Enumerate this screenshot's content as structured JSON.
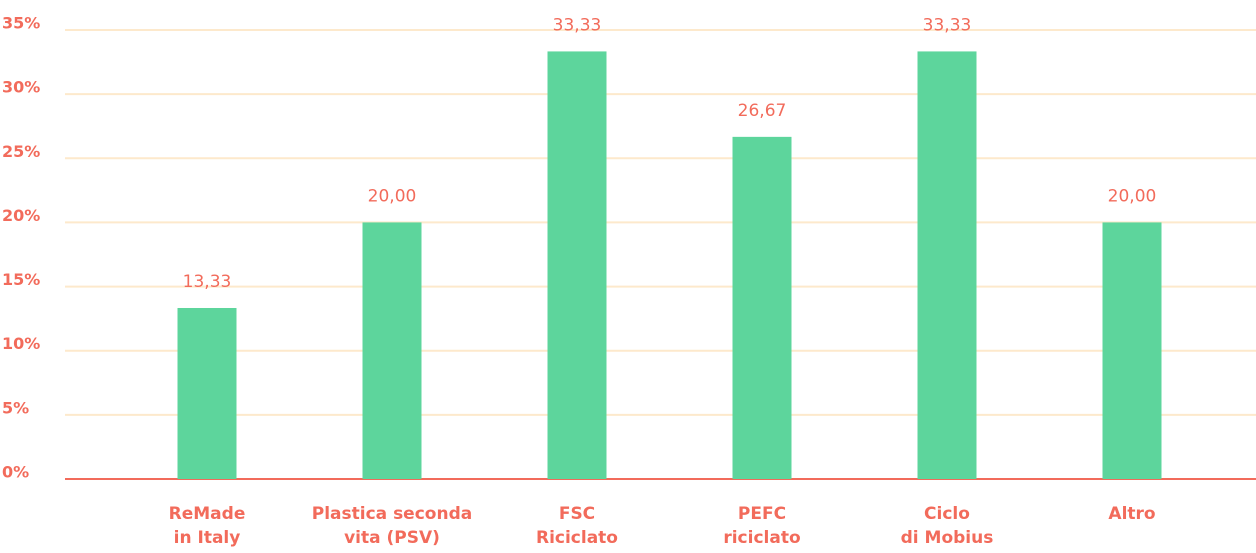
{
  "chart_data": {
    "type": "bar",
    "categories": [
      "ReMade\nin Italy",
      "Plastica seconda\nvita (PSV)",
      "FSC\nRiciclato",
      "PEFC\nriciclato",
      "Ciclo\ndi Mobius",
      "Altro"
    ],
    "values": [
      13.33,
      20,
      33.33,
      26.67,
      33.33,
      20
    ],
    "value_labels": [
      "13,33",
      "20,00",
      "33,33",
      "26,67",
      "33,33",
      "20,00"
    ],
    "color": "#5dd59c",
    "ylim": [
      0,
      35
    ],
    "yticks": [
      {
        "value": 0,
        "label": "0%"
      },
      {
        "value": 5,
        "label": "5%"
      },
      {
        "value": 10,
        "label": "10%"
      },
      {
        "value": 15,
        "label": "15%"
      },
      {
        "value": 20,
        "label": "20%"
      },
      {
        "value": 25,
        "label": "25%"
      },
      {
        "value": 30,
        "label": "30%"
      },
      {
        "value": 35,
        "label": "35%"
      }
    ],
    "grid": true
  }
}
